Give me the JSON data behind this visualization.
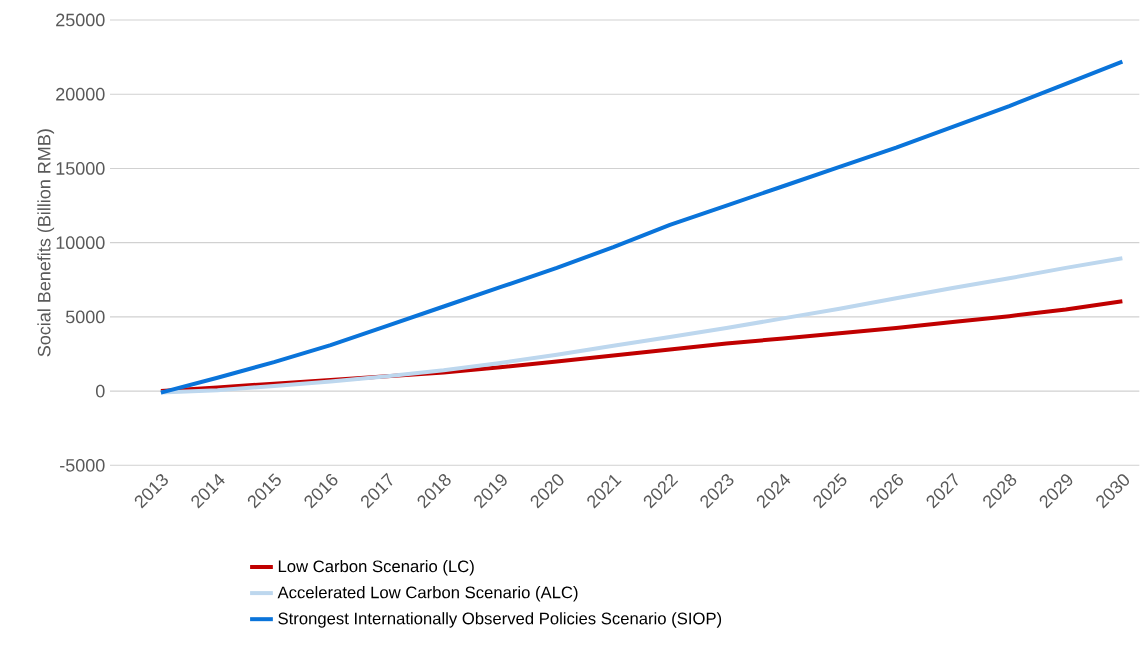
{
  "chart_data": {
    "type": "line",
    "ylabel": "Social Benefits (Billion RMB)",
    "categories": [
      "2013",
      "2014",
      "2015",
      "2016",
      "2017",
      "2018",
      "2019",
      "2020",
      "2021",
      "2022",
      "2023",
      "2024",
      "2025",
      "2026",
      "2027",
      "2028",
      "2029",
      "2030"
    ],
    "series": [
      {
        "name": "Low Carbon Scenario (LC)",
        "color": "#c00000",
        "values": [
          0,
          250,
          500,
          750,
          1000,
          1250,
          1600,
          2000,
          2400,
          2800,
          3200,
          3550,
          3900,
          4250,
          4650,
          5050,
          5500,
          6050
        ]
      },
      {
        "name": "Accelerated Low Carbon Scenario (ALC)",
        "color": "#bdd7ee",
        "values": [
          -100,
          50,
          350,
          650,
          1000,
          1400,
          1900,
          2450,
          3050,
          3650,
          4250,
          4900,
          5550,
          6250,
          6950,
          7600,
          8300,
          8950
        ]
      },
      {
        "name": "Strongest Internationally Observed Policies Scenario (SIOP)",
        "color": "#0a74da",
        "values": [
          -100,
          900,
          1950,
          3100,
          4400,
          5700,
          7000,
          8300,
          9700,
          11200,
          12500,
          13800,
          15100,
          16400,
          17800,
          19200,
          20700,
          22200
        ]
      }
    ],
    "ylim": [
      -5000,
      25000
    ],
    "yticks": [
      -5000,
      0,
      5000,
      10000,
      15000,
      20000,
      25000
    ],
    "grid": "y",
    "legend": "bottom",
    "marker": "none",
    "line_style": "solid"
  }
}
